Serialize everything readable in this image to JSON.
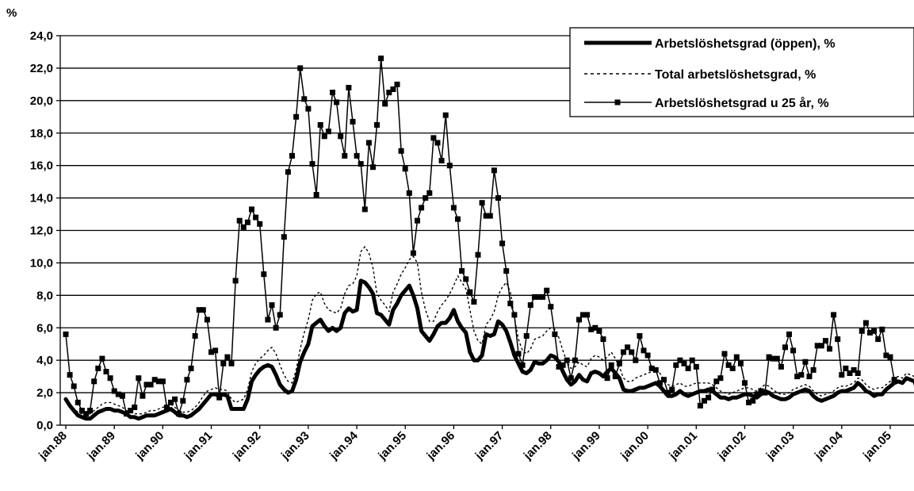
{
  "chart_data": {
    "type": "line",
    "y_unit_label": "%",
    "ylim": [
      0,
      24
    ],
    "y_ticks": [
      "0,0",
      "2,0",
      "4,0",
      "6,0",
      "8,0",
      "10,0",
      "12,0",
      "14,0",
      "16,0",
      "18,0",
      "20,0",
      "22,0",
      "24,0"
    ],
    "x_ticks": [
      "jan.88",
      "jan.89",
      "jan.90",
      "jan.91",
      "jan.92",
      "jan.93",
      "jan.94",
      "jan.95",
      "jan.96",
      "jan.97",
      "jan.98",
      "jan.99",
      "jan.00",
      "jan.01",
      "jan.02",
      "jan.03",
      "jan.04",
      "jan.05"
    ],
    "x_start": "jan.88",
    "x_end": "apr.05",
    "grid": true,
    "legend_position": "top-right",
    "series": [
      {
        "name": "Arbetslöshetsgrad (öppen), %",
        "style": "thick-solid",
        "color": "#000000",
        "values": [
          1.6,
          1.2,
          0.9,
          0.6,
          0.5,
          0.4,
          0.4,
          0.6,
          0.8,
          0.9,
          1.0,
          1.0,
          0.9,
          0.9,
          0.8,
          0.7,
          0.5,
          0.5,
          0.4,
          0.5,
          0.6,
          0.6,
          0.6,
          0.7,
          0.8,
          0.9,
          1.0,
          0.8,
          0.6,
          0.6,
          0.5,
          0.6,
          0.8,
          1.0,
          1.3,
          1.6,
          1.9,
          1.9,
          1.8,
          1.9,
          1.8,
          1.0,
          1.0,
          1.0,
          1.0,
          1.6,
          2.7,
          3.1,
          3.4,
          3.6,
          3.7,
          3.6,
          3.1,
          2.5,
          2.2,
          2.0,
          2.1,
          2.8,
          3.9,
          4.5,
          5.0,
          6.1,
          6.3,
          6.5,
          6.1,
          5.8,
          6.0,
          5.8,
          6.0,
          6.9,
          7.2,
          7.0,
          7.1,
          8.9,
          8.8,
          8.5,
          8.1,
          6.9,
          6.8,
          6.5,
          6.2,
          7.1,
          7.5,
          8.0,
          8.3,
          8.6,
          8.0,
          7.2,
          5.8,
          5.5,
          5.2,
          5.6,
          6.1,
          6.3,
          6.3,
          6.6,
          7.1,
          6.4,
          6.0,
          5.7,
          4.5,
          4.0,
          4.0,
          4.3,
          5.6,
          5.5,
          5.6,
          6.4,
          6.2,
          5.8,
          5.1,
          4.3,
          3.8,
          3.3,
          3.2,
          3.4,
          3.9,
          3.8,
          3.8,
          4.0,
          4.3,
          4.2,
          3.9,
          3.3,
          2.8,
          2.5,
          2.7,
          3.1,
          2.8,
          2.7,
          3.2,
          3.3,
          3.2,
          3.0,
          3.3,
          3.5,
          3.2,
          2.9,
          2.2,
          2.1,
          2.1,
          2.2,
          2.3,
          2.3,
          2.4,
          2.5,
          2.6,
          2.4,
          2.1,
          1.8,
          1.8,
          1.9,
          2.1,
          1.9,
          1.8,
          1.9,
          2.0,
          2.1,
          2.1,
          2.2,
          2.1,
          1.9,
          1.7,
          1.7,
          1.6,
          1.7,
          1.7,
          1.8,
          1.9,
          1.9,
          1.8,
          1.7,
          1.9,
          2.1,
          2.0,
          1.8,
          1.7,
          1.6,
          1.6,
          1.7,
          1.9,
          2.0,
          2.1,
          2.2,
          2.1,
          1.8,
          1.6,
          1.5,
          1.6,
          1.7,
          1.8,
          2.0,
          2.1,
          2.1,
          2.2,
          2.3,
          2.6,
          2.4,
          2.1,
          2.0,
          1.8,
          1.9,
          1.9,
          2.2,
          2.4,
          2.6,
          2.7,
          2.6,
          2.9,
          2.8,
          2.7,
          2.0
        ]
      },
      {
        "name": "Total arbetslöshetsgrad, %",
        "style": "dotted",
        "color": "#000000",
        "values": [
          1.5,
          1.3,
          1.0,
          0.8,
          0.7,
          0.6,
          0.7,
          0.9,
          1.1,
          1.3,
          1.4,
          1.4,
          1.3,
          1.2,
          1.1,
          0.9,
          0.8,
          0.7,
          0.7,
          0.7,
          0.8,
          0.9,
          0.9,
          1.0,
          1.1,
          1.2,
          1.3,
          1.1,
          0.9,
          0.8,
          0.8,
          0.9,
          1.1,
          1.4,
          1.8,
          2.1,
          2.2,
          2.3,
          2.2,
          2.2,
          2.1,
          1.6,
          1.4,
          1.5,
          1.6,
          2.2,
          3.3,
          3.8,
          4.1,
          4.3,
          4.6,
          4.8,
          4.4,
          3.7,
          3.1,
          2.7,
          2.6,
          3.4,
          4.7,
          5.7,
          6.5,
          7.7,
          8.1,
          8.2,
          7.5,
          7.1,
          7.0,
          6.9,
          7.2,
          8.1,
          8.6,
          8.7,
          9.2,
          10.7,
          11.0,
          10.6,
          9.7,
          8.1,
          7.7,
          7.4,
          7.0,
          8.2,
          8.7,
          9.3,
          9.7,
          10.2,
          10.4,
          10.0,
          8.2,
          7.1,
          6.4,
          6.4,
          7.0,
          7.4,
          7.7,
          8.1,
          8.6,
          9.2,
          8.8,
          8.4,
          7.1,
          5.8,
          5.2,
          5.0,
          6.2,
          6.5,
          7.0,
          8.0,
          8.5,
          8.8,
          8.2,
          6.6,
          5.3,
          4.6,
          4.4,
          4.7,
          5.3,
          5.4,
          5.5,
          5.8,
          6.0,
          5.9,
          5.4,
          4.6,
          3.9,
          3.5,
          3.6,
          3.9,
          3.7,
          3.6,
          4.1,
          4.3,
          4.2,
          4.0,
          4.2,
          4.5,
          4.1,
          3.6,
          2.9,
          2.7,
          2.7,
          2.9,
          3.0,
          3.1,
          3.2,
          3.3,
          3.5,
          3.2,
          2.8,
          2.5,
          2.4,
          2.5,
          2.6,
          2.4,
          2.4,
          2.5,
          2.6,
          2.6,
          2.6,
          2.6,
          2.5,
          2.3,
          2.1,
          2.0,
          1.9,
          2.0,
          2.1,
          2.2,
          2.3,
          2.3,
          2.2,
          2.1,
          2.3,
          2.5,
          2.4,
          2.2,
          2.0,
          1.9,
          1.9,
          2.0,
          2.2,
          2.3,
          2.4,
          2.5,
          2.4,
          2.1,
          1.9,
          1.8,
          1.9,
          2.0,
          2.1,
          2.3,
          2.4,
          2.4,
          2.5,
          2.6,
          2.9,
          2.8,
          2.5,
          2.3,
          2.2,
          2.3,
          2.3,
          2.5,
          2.7,
          2.9,
          3.0,
          2.9,
          3.2,
          3.1,
          3.0,
          2.3
        ]
      },
      {
        "name": "Arbetslöshetsgrad u 25 år, %",
        "style": "solid-square-markers",
        "color": "#000000",
        "values": [
          5.6,
          3.1,
          2.4,
          1.4,
          0.9,
          0.7,
          0.9,
          2.7,
          3.5,
          4.1,
          3.3,
          2.9,
          2.1,
          1.9,
          1.8,
          0.7,
          0.9,
          1.1,
          2.9,
          1.8,
          2.5,
          2.5,
          2.8,
          2.7,
          2.7,
          1.1,
          1.4,
          1.6,
          0.7,
          1.5,
          2.8,
          3.5,
          5.5,
          7.1,
          7.1,
          6.5,
          4.5,
          4.6,
          1.7,
          3.8,
          4.2,
          3.8,
          8.9,
          12.6,
          12.2,
          12.5,
          13.3,
          12.8,
          12.4,
          9.3,
          6.5,
          7.4,
          6.0,
          6.8,
          11.6,
          15.6,
          16.6,
          19.0,
          22.0,
          20.1,
          19.5,
          16.1,
          14.2,
          18.5,
          17.8,
          18.1,
          20.5,
          19.9,
          17.8,
          16.6,
          20.8,
          18.7,
          16.6,
          16.1,
          13.3,
          17.4,
          15.9,
          18.5,
          22.6,
          19.8,
          20.5,
          20.7,
          21.0,
          16.9,
          15.8,
          14.3,
          10.6,
          12.6,
          13.4,
          14.0,
          14.3,
          17.7,
          17.4,
          16.3,
          19.1,
          16.0,
          13.4,
          12.7,
          9.5,
          9.0,
          8.2,
          7.6,
          10.5,
          13.7,
          12.9,
          12.9,
          15.7,
          14.0,
          11.2,
          9.5,
          7.5,
          6.8,
          4.4,
          3.7,
          5.5,
          7.4,
          7.9,
          7.9,
          7.9,
          8.3,
          7.3,
          5.6,
          3.6,
          3.7,
          4.0,
          2.9,
          4.0,
          6.5,
          6.8,
          6.8,
          5.9,
          6.0,
          5.8,
          5.3,
          2.9,
          3.7,
          3.0,
          3.8,
          4.5,
          4.8,
          4.5,
          4.0,
          5.5,
          4.6,
          4.3,
          3.5,
          3.4,
          2.6,
          2.8,
          2.0,
          2.2,
          3.7,
          4.0,
          3.8,
          3.5,
          4.0,
          3.6,
          1.2,
          1.5,
          1.7,
          2.2,
          2.7,
          2.9,
          4.4,
          3.7,
          3.5,
          4.2,
          3.8,
          2.6,
          1.4,
          1.5,
          1.9,
          2.1,
          2.0,
          4.2,
          4.1,
          4.1,
          3.6,
          4.8,
          5.6,
          4.6,
          3.0,
          3.1,
          3.9,
          3.0,
          3.4,
          4.9,
          4.9,
          5.2,
          4.7,
          6.8,
          5.3,
          3.1,
          3.5,
          3.2,
          3.4,
          3.2,
          5.8,
          6.3,
          5.7,
          5.8,
          5.3,
          5.9,
          4.3,
          4.2,
          2.8
        ]
      }
    ]
  }
}
